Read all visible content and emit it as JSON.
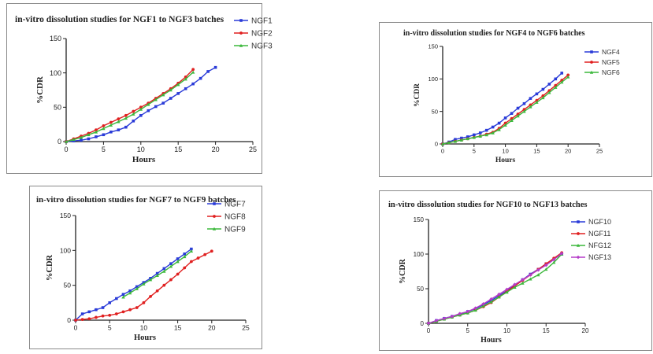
{
  "chart_data": [
    {
      "type": "line",
      "title": "in-vitro dissolution studies for NGF1 to NGF3 batches",
      "xlabel": "Hours",
      "ylabel": "%CDR",
      "xlim": [
        0,
        25
      ],
      "ylim": [
        0,
        150
      ],
      "xticks": [
        "0",
        "5",
        "10",
        "15",
        "20",
        "25"
      ],
      "yticks": [
        "0",
        "50",
        "100",
        "150"
      ],
      "legend_position": "top-right",
      "series": [
        {
          "name": "NGF1",
          "color": "#2a3bd8",
          "x": [
            0,
            1,
            2,
            3,
            4,
            5,
            6,
            7,
            8,
            9,
            10,
            11,
            12,
            13,
            14,
            15,
            16,
            17,
            18,
            19,
            20
          ],
          "y": [
            0,
            1,
            2,
            4,
            7,
            10,
            14,
            17,
            21,
            30,
            38,
            45,
            51,
            56,
            63,
            70,
            77,
            84,
            92,
            102,
            108
          ]
        },
        {
          "name": "NGF2",
          "color": "#e02020",
          "x": [
            0,
            1,
            2,
            3,
            4,
            5,
            6,
            7,
            8,
            9,
            10,
            11,
            12,
            13,
            14,
            15,
            16,
            17
          ],
          "y": [
            0,
            4,
            8,
            12,
            17,
            23,
            28,
            33,
            38,
            44,
            50,
            56,
            63,
            70,
            77,
            85,
            94,
            105
          ]
        },
        {
          "name": "NGF3",
          "color": "#3cb83c",
          "x": [
            0,
            1,
            2,
            3,
            4,
            5,
            6,
            7,
            8,
            9,
            10,
            11,
            12,
            13,
            14,
            15,
            16,
            17
          ],
          "y": [
            0,
            3,
            6,
            10,
            14,
            19,
            24,
            29,
            34,
            40,
            47,
            54,
            61,
            68,
            75,
            83,
            91,
            101
          ]
        }
      ]
    },
    {
      "type": "line",
      "title": "in-vitro dissolution studies for NGF4 to NGF6 batches",
      "xlabel": "Hours",
      "ylabel": "%CDR",
      "xlim": [
        0,
        25
      ],
      "ylim": [
        0,
        150
      ],
      "xticks": [
        "0",
        "5",
        "10",
        "15",
        "20",
        "25"
      ],
      "yticks": [
        "0",
        "50",
        "100",
        "150"
      ],
      "legend_position": "top-right",
      "series": [
        {
          "name": "NGF4",
          "color": "#2a3bd8",
          "x": [
            0,
            1,
            2,
            3,
            4,
            5,
            6,
            7,
            8,
            9,
            10,
            11,
            12,
            13,
            14,
            15,
            16,
            17,
            18,
            19
          ],
          "y": [
            0,
            3,
            7,
            9,
            11,
            14,
            17,
            21,
            26,
            32,
            40,
            47,
            55,
            62,
            70,
            77,
            84,
            92,
            100,
            109
          ]
        },
        {
          "name": "NGF5",
          "color": "#e02020",
          "x": [
            0,
            1,
            2,
            3,
            4,
            5,
            6,
            7,
            8,
            9,
            10,
            11,
            12,
            13,
            14,
            15,
            16,
            17,
            18,
            19,
            20
          ],
          "y": [
            0,
            2,
            4,
            6,
            8,
            10,
            12,
            15,
            18,
            24,
            32,
            39,
            46,
            53,
            60,
            67,
            74,
            82,
            90,
            98,
            106
          ]
        },
        {
          "name": "NGF6",
          "color": "#3cb83c",
          "x": [
            0,
            1,
            2,
            3,
            4,
            5,
            6,
            7,
            8,
            9,
            10,
            11,
            12,
            13,
            14,
            15,
            16,
            17,
            18,
            19,
            20
          ],
          "y": [
            0,
            2,
            4,
            6,
            8,
            10,
            12,
            14,
            17,
            22,
            29,
            36,
            43,
            50,
            57,
            64,
            71,
            79,
            87,
            95,
            103
          ]
        }
      ]
    },
    {
      "type": "line",
      "title": "in-vitro dissolution studies for NGF7 to NGF9  batches",
      "xlabel": "Hours",
      "ylabel": "%CDR",
      "xlim": [
        0,
        25
      ],
      "ylim": [
        0,
        150
      ],
      "xticks": [
        "0",
        "5",
        "10",
        "15",
        "20",
        "25"
      ],
      "yticks": [
        "0",
        "50",
        "100",
        "150"
      ],
      "legend_position": "top-right",
      "series": [
        {
          "name": "NGF7",
          "color": "#2a3bd8",
          "x": [
            0,
            1,
            2,
            3,
            4,
            5,
            6,
            7,
            8,
            9,
            10,
            11,
            12,
            13,
            14,
            15,
            16,
            17
          ],
          "y": [
            0,
            9,
            12,
            15,
            18,
            25,
            31,
            37,
            42,
            48,
            54,
            60,
            67,
            74,
            81,
            88,
            95,
            102
          ]
        },
        {
          "name": "NGF8",
          "color": "#e02020",
          "x": [
            0,
            1,
            2,
            3,
            4,
            5,
            6,
            7,
            8,
            9,
            10,
            11,
            12,
            13,
            14,
            15,
            16,
            17,
            18,
            19,
            20
          ],
          "y": [
            0,
            1,
            2,
            4,
            6,
            7,
            9,
            12,
            15,
            18,
            25,
            34,
            42,
            50,
            58,
            66,
            75,
            84,
            89,
            94,
            99
          ]
        },
        {
          "name": "NGF9",
          "color": "#3cb83c",
          "x": [
            7,
            8,
            9,
            10,
            11,
            12,
            13,
            14,
            15,
            16,
            17
          ],
          "y": [
            33,
            39,
            45,
            52,
            58,
            64,
            70,
            77,
            84,
            91,
            99
          ]
        }
      ]
    },
    {
      "type": "line",
      "title": "in-vitro dissolution studies for NGF10 to NGF13 batches",
      "xlabel": "Hours",
      "ylabel": "%CDR",
      "xlim": [
        0,
        20
      ],
      "ylim": [
        0,
        150
      ],
      "xticks": [
        "0",
        "5",
        "10",
        "15",
        "20"
      ],
      "yticks": [
        "0",
        "50",
        "100",
        "150"
      ],
      "legend_position": "top-right",
      "series": [
        {
          "name": "NGF10",
          "color": "#2a3bd8",
          "x": [
            0,
            1,
            2,
            3,
            4,
            5,
            6,
            7,
            8,
            9,
            10,
            11,
            12,
            13,
            14,
            15,
            16,
            17
          ],
          "y": [
            0,
            4,
            7,
            10,
            13,
            17,
            21,
            27,
            33,
            40,
            47,
            55,
            63,
            71,
            78,
            86,
            93,
            100
          ]
        },
        {
          "name": "NGF11",
          "color": "#e02020",
          "x": [
            0,
            1,
            2,
            3,
            4,
            5,
            6,
            7,
            8,
            9,
            10,
            11,
            12,
            13,
            14,
            15,
            16,
            17
          ],
          "y": [
            0,
            3,
            6,
            9,
            12,
            15,
            19,
            24,
            30,
            38,
            46,
            54,
            62,
            70,
            78,
            86,
            94,
            102
          ]
        },
        {
          "name": "NFG12",
          "color": "#3cb83c",
          "x": [
            0,
            1,
            2,
            3,
            4,
            5,
            6,
            7,
            8,
            9,
            10,
            11,
            12,
            13,
            14,
            15,
            16,
            17
          ],
          "y": [
            0,
            3,
            6,
            9,
            12,
            15,
            19,
            25,
            31,
            38,
            45,
            52,
            58,
            64,
            70,
            78,
            88,
            100
          ]
        },
        {
          "name": "NGF13",
          "color": "#b53cc8",
          "x": [
            0,
            1,
            2,
            3,
            4,
            5,
            6,
            7,
            8,
            9,
            10,
            11,
            12,
            13,
            14,
            15,
            16,
            17
          ],
          "y": [
            0,
            4,
            7,
            10,
            14,
            17,
            22,
            28,
            35,
            42,
            49,
            56,
            63,
            70,
            77,
            84,
            92,
            101
          ]
        }
      ]
    }
  ]
}
